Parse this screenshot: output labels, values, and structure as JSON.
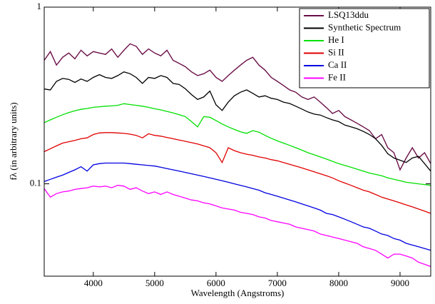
{
  "chart_data": {
    "type": "line",
    "xlabel": "Wavelength (Angstroms)",
    "ylabel": "fλ (in arbitrary units)",
    "log_y": true,
    "legend": "upper right",
    "xlim": [
      3200,
      9500
    ],
    "xticks": [
      4000,
      5000,
      6000,
      7000,
      8000,
      9000
    ],
    "ylim": [
      0.03,
      1
    ],
    "yticks": [
      0.1,
      1
    ],
    "x": [
      3200,
      3300,
      3400,
      3500,
      3600,
      3700,
      3800,
      3900,
      4000,
      4100,
      4200,
      4300,
      4400,
      4500,
      4600,
      4700,
      4800,
      4900,
      5000,
      5100,
      5200,
      5300,
      5400,
      5500,
      5600,
      5700,
      5800,
      5900,
      6000,
      6100,
      6200,
      6300,
      6400,
      6500,
      6600,
      6700,
      6800,
      6900,
      7000,
      7100,
      7200,
      7300,
      7400,
      7500,
      7600,
      7700,
      7800,
      7900,
      8000,
      8100,
      8200,
      8300,
      8400,
      8500,
      8600,
      8700,
      8800,
      8900,
      9000,
      9100,
      9200,
      9300,
      9400,
      9500
    ],
    "series": [
      {
        "name": "LSQ13ddu",
        "color": "#6b1048",
        "values": [
          0.5,
          0.56,
          0.47,
          0.52,
          0.55,
          0.51,
          0.57,
          0.53,
          0.56,
          0.55,
          0.54,
          0.58,
          0.52,
          0.57,
          0.62,
          0.6,
          0.54,
          0.58,
          0.55,
          0.53,
          0.57,
          0.5,
          0.48,
          0.46,
          0.43,
          0.41,
          0.42,
          0.44,
          0.4,
          0.38,
          0.41,
          0.44,
          0.47,
          0.5,
          0.52,
          0.47,
          0.44,
          0.4,
          0.38,
          0.36,
          0.34,
          0.33,
          0.31,
          0.3,
          0.31,
          0.29,
          0.27,
          0.25,
          0.26,
          0.24,
          0.23,
          0.22,
          0.21,
          0.2,
          0.18,
          0.19,
          0.16,
          0.15,
          0.12,
          0.14,
          0.16,
          0.14,
          0.15,
          0.13
        ]
      },
      {
        "name": "Synthetic Spectrum",
        "color": "#000000",
        "values": [
          0.344,
          0.34,
          0.38,
          0.395,
          0.39,
          0.375,
          0.392,
          0.38,
          0.4,
          0.415,
          0.4,
          0.395,
          0.41,
          0.43,
          0.42,
          0.4,
          0.37,
          0.4,
          0.395,
          0.41,
          0.4,
          0.37,
          0.365,
          0.345,
          0.32,
          0.3,
          0.31,
          0.335,
          0.28,
          0.26,
          0.29,
          0.315,
          0.33,
          0.34,
          0.325,
          0.31,
          0.315,
          0.305,
          0.3,
          0.29,
          0.285,
          0.275,
          0.265,
          0.255,
          0.248,
          0.245,
          0.237,
          0.23,
          0.225,
          0.215,
          0.21,
          0.205,
          0.198,
          0.19,
          0.18,
          0.165,
          0.148,
          0.14,
          0.136,
          0.132,
          0.14,
          0.143,
          0.13,
          0.118
        ]
      },
      {
        "name": "He I",
        "color": "#00e000",
        "values": [
          0.222,
          0.23,
          0.238,
          0.246,
          0.253,
          0.259,
          0.264,
          0.267,
          0.271,
          0.273,
          0.275,
          0.276,
          0.278,
          0.284,
          0.281,
          0.278,
          0.275,
          0.271,
          0.266,
          0.262,
          0.257,
          0.252,
          0.246,
          0.24,
          0.225,
          0.21,
          0.24,
          0.238,
          0.228,
          0.218,
          0.21,
          0.203,
          0.197,
          0.193,
          0.2,
          0.196,
          0.188,
          0.181,
          0.175,
          0.17,
          0.165,
          0.16,
          0.155,
          0.15,
          0.146,
          0.142,
          0.138,
          0.134,
          0.13,
          0.127,
          0.124,
          0.121,
          0.118,
          0.115,
          0.113,
          0.111,
          0.108,
          0.106,
          0.104,
          0.102,
          0.101,
          0.1,
          0.099,
          0.098
        ]
      },
      {
        "name": "Si II",
        "color": "#e00000",
        "values": [
          0.152,
          0.158,
          0.164,
          0.17,
          0.173,
          0.176,
          0.18,
          0.182,
          0.19,
          0.194,
          0.195,
          0.195,
          0.194,
          0.193,
          0.191,
          0.188,
          0.182,
          0.192,
          0.188,
          0.186,
          0.183,
          0.18,
          0.177,
          0.174,
          0.171,
          0.168,
          0.164,
          0.16,
          0.15,
          0.132,
          0.16,
          0.154,
          0.15,
          0.147,
          0.145,
          0.142,
          0.14,
          0.137,
          0.135,
          0.132,
          0.129,
          0.126,
          0.123,
          0.12,
          0.117,
          0.114,
          0.111,
          0.108,
          0.104,
          0.101,
          0.098,
          0.095,
          0.092,
          0.09,
          0.087,
          0.084,
          0.082,
          0.08,
          0.078,
          0.076,
          0.074,
          0.072,
          0.07,
          0.068
        ]
      },
      {
        "name": "Ca II",
        "color": "#0000e0",
        "values": [
          0.103,
          0.106,
          0.109,
          0.112,
          0.116,
          0.12,
          0.125,
          0.118,
          0.128,
          0.13,
          0.131,
          0.131,
          0.131,
          0.131,
          0.13,
          0.129,
          0.128,
          0.127,
          0.126,
          0.124,
          0.122,
          0.12,
          0.118,
          0.116,
          0.114,
          0.112,
          0.11,
          0.108,
          0.106,
          0.104,
          0.102,
          0.1,
          0.098,
          0.096,
          0.094,
          0.092,
          0.089,
          0.087,
          0.085,
          0.083,
          0.081,
          0.079,
          0.077,
          0.075,
          0.073,
          0.071,
          0.068,
          0.067,
          0.065,
          0.063,
          0.061,
          0.059,
          0.057,
          0.056,
          0.054,
          0.052,
          0.051,
          0.049,
          0.048,
          0.046,
          0.045,
          0.044,
          0.043,
          0.042
        ]
      },
      {
        "name": "Fe II",
        "color": "#ff00ff",
        "values": [
          0.094,
          0.084,
          0.088,
          0.09,
          0.091,
          0.093,
          0.094,
          0.095,
          0.097,
          0.096,
          0.097,
          0.095,
          0.098,
          0.097,
          0.093,
          0.095,
          0.091,
          0.088,
          0.09,
          0.087,
          0.09,
          0.087,
          0.085,
          0.083,
          0.081,
          0.08,
          0.078,
          0.077,
          0.075,
          0.073,
          0.072,
          0.071,
          0.069,
          0.068,
          0.067,
          0.065,
          0.064,
          0.062,
          0.061,
          0.06,
          0.059,
          0.057,
          0.056,
          0.055,
          0.054,
          0.052,
          0.051,
          0.05,
          0.049,
          0.048,
          0.047,
          0.046,
          0.044,
          0.043,
          0.042,
          0.04,
          0.038,
          0.04,
          0.04,
          0.039,
          0.038,
          0.036,
          0.035,
          0.034
        ]
      }
    ]
  }
}
